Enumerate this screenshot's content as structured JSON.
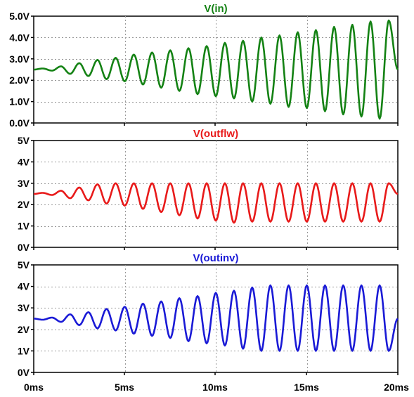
{
  "chart_data": [
    {
      "type": "line",
      "title": "V(in)",
      "color": "#148214",
      "xlim": [
        0,
        20
      ],
      "ylim": [
        0,
        5
      ],
      "y_ticks": [
        0,
        1,
        2,
        3,
        4,
        5
      ],
      "y_tick_labels": [
        "0.0V",
        "1.0V",
        "2.0V",
        "3.0V",
        "4.0V",
        "5.0V"
      ],
      "grid": true,
      "series": [
        {
          "x": [
            0,
            0.5,
            1.0,
            1.5,
            2.0,
            2.5,
            3.0,
            3.5,
            4.0,
            4.5,
            5.0,
            5.5,
            6.0,
            6.5,
            7.0,
            7.5,
            8.0,
            8.5,
            9.0,
            9.5,
            10.0,
            10.5,
            11.0,
            11.5,
            12.0,
            12.5,
            13.0,
            13.5,
            14.0,
            14.5,
            15.0,
            15.5,
            16.0,
            16.5,
            17.0,
            17.5,
            18.0,
            18.5,
            19.0,
            19.5,
            20.0
          ],
          "values": [
            2.5,
            2.55,
            2.45,
            2.65,
            2.3,
            2.8,
            2.2,
            2.95,
            2.05,
            3.05,
            1.95,
            3.2,
            1.8,
            3.3,
            1.65,
            3.4,
            1.5,
            3.5,
            1.35,
            3.6,
            1.25,
            3.75,
            1.15,
            3.85,
            1.0,
            4.0,
            0.9,
            4.1,
            0.75,
            4.25,
            0.7,
            4.35,
            0.55,
            4.5,
            0.4,
            4.6,
            0.3,
            4.75,
            0.2,
            4.8,
            2.5
          ]
        }
      ]
    },
    {
      "type": "line",
      "title": "V(outflw)",
      "color": "#e81a1a",
      "xlim": [
        0,
        20
      ],
      "ylim": [
        0,
        5
      ],
      "y_ticks": [
        0,
        1,
        2,
        3,
        4,
        5
      ],
      "y_tick_labels": [
        "0V",
        "1V",
        "2V",
        "3V",
        "4V",
        "5V"
      ],
      "grid": true,
      "series": [
        {
          "x": [
            0,
            0.5,
            1.0,
            1.5,
            2.0,
            2.5,
            3.0,
            3.5,
            4.0,
            4.5,
            5.0,
            5.5,
            6.0,
            6.5,
            7.0,
            7.5,
            8.0,
            8.5,
            9.0,
            9.5,
            10.0,
            10.5,
            11.0,
            11.5,
            12.0,
            12.5,
            13.0,
            13.5,
            14.0,
            14.5,
            15.0,
            15.5,
            16.0,
            16.5,
            17.0,
            17.5,
            18.0,
            18.5,
            19.0,
            19.5,
            20.0
          ],
          "values": [
            2.5,
            2.55,
            2.45,
            2.65,
            2.3,
            2.8,
            2.2,
            2.95,
            2.05,
            3.0,
            1.95,
            3.0,
            1.8,
            3.0,
            1.65,
            3.0,
            1.5,
            3.0,
            1.35,
            3.0,
            1.25,
            3.0,
            1.15,
            3.0,
            1.2,
            3.0,
            1.2,
            3.0,
            1.2,
            3.0,
            1.2,
            3.0,
            1.2,
            3.0,
            1.2,
            3.0,
            1.2,
            3.0,
            1.2,
            3.0,
            2.5
          ]
        }
      ]
    },
    {
      "type": "line",
      "title": "V(outinv)",
      "color": "#1a1ad6",
      "xlim": [
        0,
        20
      ],
      "ylim": [
        0,
        5
      ],
      "y_ticks": [
        0,
        1,
        2,
        3,
        4,
        5
      ],
      "y_tick_labels": [
        "0V",
        "1V",
        "2V",
        "3V",
        "4V",
        "5V"
      ],
      "x_ticks": [
        0,
        5,
        10,
        15,
        20
      ],
      "x_tick_labels": [
        "0ms",
        "5ms",
        "10ms",
        "15ms",
        "20ms"
      ],
      "grid": true,
      "series": [
        {
          "x": [
            0,
            0.5,
            1.0,
            1.5,
            2.0,
            2.5,
            3.0,
            3.5,
            4.0,
            4.5,
            5.0,
            5.5,
            6.0,
            6.5,
            7.0,
            7.5,
            8.0,
            8.5,
            9.0,
            9.5,
            10.0,
            10.5,
            11.0,
            11.5,
            12.0,
            12.5,
            13.0,
            13.5,
            14.0,
            14.5,
            15.0,
            15.5,
            16.0,
            16.5,
            17.0,
            17.5,
            18.0,
            18.5,
            19.0,
            19.5,
            20.0
          ],
          "values": [
            2.5,
            2.45,
            2.55,
            2.35,
            2.7,
            2.2,
            2.8,
            2.05,
            2.95,
            1.95,
            3.05,
            1.8,
            3.2,
            1.7,
            3.3,
            1.6,
            3.45,
            1.45,
            3.55,
            1.35,
            3.7,
            1.25,
            3.8,
            1.1,
            3.95,
            1.0,
            4.05,
            1.0,
            4.05,
            1.0,
            4.05,
            1.0,
            4.05,
            1.0,
            4.05,
            1.0,
            4.05,
            1.0,
            4.05,
            1.0,
            2.5
          ]
        }
      ]
    }
  ]
}
